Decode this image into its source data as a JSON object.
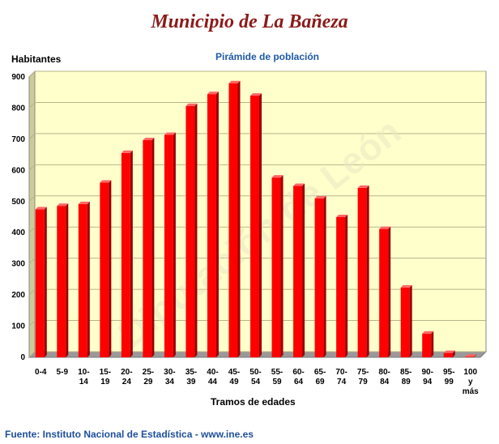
{
  "header": {
    "title": "Municipio de La Bañeza",
    "watermark": "Diputación de León"
  },
  "footer": {
    "source": "Fuente: Instituto Nacional de Estadística - www.ine.es"
  },
  "colors": {
    "bar": "#ff0000",
    "bar_dark": "#9a0000",
    "plot_bg": "#ffffcc",
    "plot_floor": "#999999",
    "title": "#8b1a1a",
    "subtitle": "#1f5aa6"
  },
  "chart_data": {
    "type": "bar",
    "title": "Pirámide de población",
    "xlabel": "Tramos de edades",
    "ylabel": "Habitantes",
    "ylim": [
      0,
      900
    ],
    "yticks": [
      0,
      100,
      200,
      300,
      400,
      500,
      600,
      700,
      800,
      900
    ],
    "grid": true,
    "categories": [
      [
        "0-4"
      ],
      [
        "5-9"
      ],
      [
        "10-",
        "14"
      ],
      [
        "15-",
        "19"
      ],
      [
        "20-",
        "24"
      ],
      [
        "25-",
        "29"
      ],
      [
        "30-",
        "34"
      ],
      [
        "35-",
        "39"
      ],
      [
        "40-",
        "44"
      ],
      [
        "45-",
        "49"
      ],
      [
        "50-",
        "54"
      ],
      [
        "55-",
        "59"
      ],
      [
        "60-",
        "64"
      ],
      [
        "65-",
        "69"
      ],
      [
        "70-",
        "74"
      ],
      [
        "75-",
        "79"
      ],
      [
        "80-",
        "84"
      ],
      [
        "85-",
        "89"
      ],
      [
        "90-",
        "94"
      ],
      [
        "95-",
        "99"
      ],
      [
        "100",
        "y",
        "más"
      ]
    ],
    "values": [
      475,
      486,
      492,
      561,
      656,
      697,
      714,
      807,
      845,
      880,
      840,
      577,
      550,
      510,
      450,
      544,
      412,
      224,
      76,
      14,
      2
    ]
  }
}
